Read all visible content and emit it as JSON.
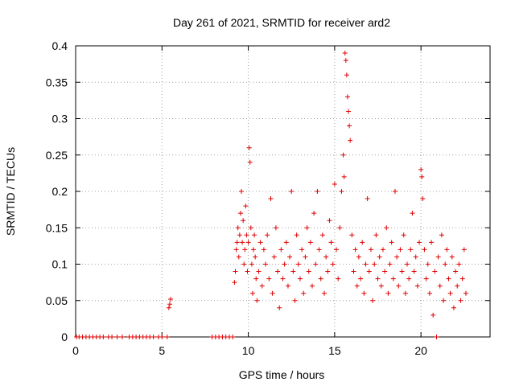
{
  "chart_data": {
    "type": "scatter",
    "title": "Day 261 of 2021, SRMTID for receiver ard2",
    "xlabel": "GPS time / hours",
    "ylabel": "SRMTID / TECUs",
    "xlim": [
      0,
      24
    ],
    "ylim": [
      0,
      0.4
    ],
    "xticks": [
      0,
      5,
      10,
      15,
      20
    ],
    "xtick_labels": [
      "0",
      "5",
      "10",
      "15",
      "20"
    ],
    "yticks": [
      0,
      0.05,
      0.1,
      0.15,
      0.2,
      0.25,
      0.3,
      0.35,
      0.4
    ],
    "ytick_labels": [
      "0",
      "0.05",
      "0.1",
      "0.15",
      "0.2",
      "0.25",
      "0.3",
      "0.35",
      "0.4"
    ],
    "grid": true,
    "marker": "+",
    "color": "#e00000",
    "series": [
      {
        "name": "SRMTID",
        "description": "approximate reading of the scatter cloud",
        "x": [
          0.05,
          0.2,
          0.4,
          0.6,
          0.8,
          1.0,
          1.2,
          1.4,
          1.6,
          1.9,
          2.1,
          2.4,
          2.7,
          3.1,
          3.3,
          3.5,
          3.7,
          3.9,
          4.1,
          4.3,
          4.5,
          4.8,
          5.0,
          5.3,
          5.4,
          5.45,
          5.5,
          7.9,
          8.1,
          8.3,
          8.5,
          8.7,
          8.9,
          9.1,
          9.2,
          9.25,
          9.3,
          9.35,
          9.4,
          9.45,
          9.5,
          9.55,
          9.6,
          9.65,
          9.7,
          9.75,
          9.8,
          9.85,
          9.9,
          9.95,
          10.0,
          10.05,
          10.1,
          10.15,
          10.2,
          10.25,
          10.3,
          10.35,
          10.4,
          10.45,
          10.5,
          10.6,
          10.7,
          10.8,
          10.9,
          11.0,
          11.1,
          11.2,
          11.3,
          11.4,
          11.5,
          11.6,
          11.7,
          11.8,
          11.9,
          12.0,
          12.1,
          12.2,
          12.3,
          12.4,
          12.5,
          12.6,
          12.7,
          12.8,
          12.9,
          13.0,
          13.1,
          13.2,
          13.3,
          13.4,
          13.5,
          13.6,
          13.7,
          13.8,
          13.9,
          14.0,
          14.1,
          14.2,
          14.3,
          14.4,
          14.5,
          14.6,
          14.7,
          14.8,
          14.9,
          15.0,
          15.1,
          15.2,
          15.3,
          15.4,
          15.5,
          15.55,
          15.6,
          15.65,
          15.7,
          15.75,
          15.8,
          15.85,
          15.9,
          16.0,
          16.1,
          16.2,
          16.3,
          16.4,
          16.5,
          16.6,
          16.7,
          16.8,
          16.9,
          17.0,
          17.1,
          17.2,
          17.3,
          17.4,
          17.5,
          17.6,
          17.7,
          17.8,
          17.9,
          18.0,
          18.1,
          18.2,
          18.3,
          18.4,
          18.5,
          18.6,
          18.7,
          18.8,
          18.9,
          19.0,
          19.1,
          19.2,
          19.3,
          19.4,
          19.5,
          19.6,
          19.7,
          19.8,
          19.9,
          20.0,
          20.05,
          20.1,
          20.2,
          20.3,
          20.4,
          20.5,
          20.6,
          20.7,
          20.8,
          20.9,
          21.0,
          21.1,
          21.2,
          21.3,
          21.4,
          21.5,
          21.6,
          21.7,
          21.8,
          21.9,
          22.0,
          22.1,
          22.2,
          22.3,
          22.4,
          22.5,
          22.6
        ],
        "y": [
          0,
          0,
          0,
          0,
          0,
          0,
          0,
          0,
          0,
          0,
          0,
          0,
          0,
          0,
          0,
          0,
          0,
          0,
          0,
          0,
          0,
          0,
          0,
          0,
          0.04,
          0.045,
          0.052,
          0,
          0,
          0,
          0,
          0,
          0,
          0,
          0.075,
          0.09,
          0.12,
          0.13,
          0.15,
          0.11,
          0.14,
          0.17,
          0.2,
          0.13,
          0.16,
          0.1,
          0.12,
          0.18,
          0.14,
          0.09,
          0.13,
          0.26,
          0.24,
          0.15,
          0.1,
          0.06,
          0.12,
          0.14,
          0.11,
          0.08,
          0.05,
          0.09,
          0.13,
          0.07,
          0.12,
          0.1,
          0.14,
          0.08,
          0.19,
          0.06,
          0.11,
          0.15,
          0.09,
          0.04,
          0.12,
          0.08,
          0.1,
          0.13,
          0.07,
          0.11,
          0.2,
          0.09,
          0.05,
          0.14,
          0.1,
          0.08,
          0.12,
          0.06,
          0.11,
          0.15,
          0.09,
          0.13,
          0.07,
          0.17,
          0.1,
          0.2,
          0.12,
          0.08,
          0.14,
          0.06,
          0.11,
          0.09,
          0.16,
          0.13,
          0.1,
          0.21,
          0.12,
          0.08,
          0.15,
          0.2,
          0.25,
          0.22,
          0.39,
          0.38,
          0.36,
          0.33,
          0.31,
          0.29,
          0.27,
          0.14,
          0.09,
          0.12,
          0.07,
          0.11,
          0.08,
          0.13,
          0.06,
          0.1,
          0.19,
          0.09,
          0.12,
          0.05,
          0.1,
          0.14,
          0.08,
          0.11,
          0.07,
          0.12,
          0.09,
          0.15,
          0.06,
          0.1,
          0.13,
          0.08,
          0.2,
          0.11,
          0.07,
          0.12,
          0.09,
          0.14,
          0.06,
          0.1,
          0.08,
          0.12,
          0.17,
          0.09,
          0.11,
          0.07,
          0.13,
          0.23,
          0.22,
          0.19,
          0.12,
          0.08,
          0.1,
          0.06,
          0.13,
          0.03,
          0.09,
          0.0,
          0.11,
          0.07,
          0.14,
          0.05,
          0.1,
          0.12,
          0.08,
          0.06,
          0.11,
          0.04,
          0.09,
          0.07,
          0.1,
          0.05,
          0.08,
          0.12,
          0.06
        ]
      }
    ]
  }
}
